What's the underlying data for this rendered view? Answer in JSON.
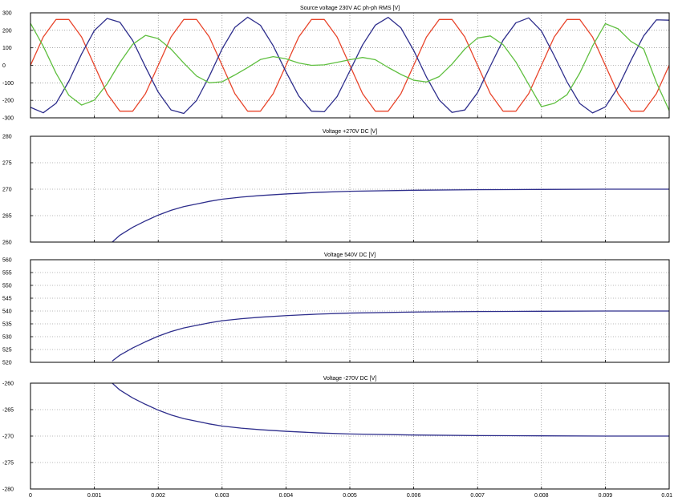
{
  "chart_data": [
    {
      "type": "line",
      "title": "Source voltage 230V AC ph-ph RMS [V]",
      "xlabel": "",
      "ylabel": "",
      "xlim": [
        0,
        0.01
      ],
      "ylim": [
        -300,
        300
      ],
      "yticks": [
        300,
        200,
        100,
        0,
        -100,
        -200,
        -300
      ],
      "ytick_labels": [
        "300",
        "200",
        "100",
        "0",
        "-100",
        "-200",
        "-300"
      ],
      "grid": true,
      "series": [
        {
          "color": "#e8442a",
          "x": [
            0,
            0.0002,
            0.0004,
            0.0006,
            0.0008,
            0.001,
            0.0012,
            0.0014,
            0.0016,
            0.0018,
            0.002,
            0.0022,
            0.0024,
            0.0026,
            0.0028,
            0.003,
            0.0032,
            0.0034,
            0.0036,
            0.0038,
            0.004,
            0.0042,
            0.0044,
            0.0046,
            0.0048,
            0.005,
            0.0052,
            0.0054,
            0.0056,
            0.0058,
            0.006,
            0.0062,
            0.0064,
            0.0066,
            0.0068,
            0.007,
            0.0072,
            0.0074,
            0.0076,
            0.0078,
            0.008,
            0.0082,
            0.0084,
            0.0086,
            0.0088,
            0.009,
            0.0092,
            0.0094,
            0.0096,
            0.0098,
            0.01
          ],
          "y": [
            0,
            162,
            262,
            262,
            162,
            0,
            -162,
            -262,
            -262,
            -162,
            0,
            162,
            262,
            262,
            162,
            0,
            -162,
            -262,
            -262,
            -162,
            0,
            162,
            262,
            262,
            162,
            0,
            -162,
            -262,
            -262,
            -162,
            0,
            162,
            262,
            262,
            162,
            0,
            -162,
            -262,
            -262,
            -162,
            0,
            162,
            262,
            262,
            162,
            0,
            -162,
            -262,
            -262,
            -162,
            0
          ]
        },
        {
          "color": "#2e2e8c",
          "x": [
            0,
            0.0002,
            0.0004,
            0.0006,
            0.0008,
            0.001,
            0.0012,
            0.0014,
            0.0016,
            0.0018,
            0.002,
            0.0022,
            0.0024,
            0.0026,
            0.0028,
            0.003,
            0.0032,
            0.0034,
            0.0036,
            0.0038,
            0.004,
            0.0042,
            0.0044,
            0.0046,
            0.0048,
            0.005,
            0.0052,
            0.0054,
            0.0056,
            0.0058,
            0.006,
            0.0062,
            0.0064,
            0.0066,
            0.0068,
            0.007,
            0.0072,
            0.0074,
            0.0076,
            0.0078,
            0.008,
            0.0082,
            0.0084,
            0.0086,
            0.0088,
            0.009,
            0.0092,
            0.0094,
            0.0096,
            0.0098,
            0.01
          ],
          "y": [
            -240,
            -271,
            -217,
            -91,
            65,
            199,
            268,
            246,
            142,
            -9,
            -153,
            -255,
            -275,
            -201,
            -62,
            94,
            217,
            275,
            229,
            112,
            -37,
            -175,
            -262,
            -265,
            -179,
            -32,
            117,
            230,
            274,
            214,
            85,
            -67,
            -198,
            -269,
            -255,
            -156,
            -4,
            144,
            243,
            271,
            196,
            55,
            -94,
            -218,
            -272,
            -238,
            -125,
            27,
            168,
            260,
            258
          ]
        },
        {
          "color": "#5fbf3f",
          "x": [
            0,
            0.0002,
            0.0004,
            0.0006,
            0.0008,
            0.001,
            0.0012,
            0.0014,
            0.0016,
            0.0018,
            0.002,
            0.0022,
            0.0024,
            0.0026,
            0.0028,
            0.003,
            0.0032,
            0.0034,
            0.0036,
            0.0038,
            0.004,
            0.0042,
            0.0044,
            0.0046,
            0.0048,
            0.005,
            0.0052,
            0.0054,
            0.0056,
            0.0058,
            0.006,
            0.0062,
            0.0064,
            0.0066,
            0.0068,
            0.007,
            0.0072,
            0.0074,
            0.0076,
            0.0078,
            0.008,
            0.0082,
            0.0084,
            0.0086,
            0.0088,
            0.009,
            0.0092,
            0.0094,
            0.0096,
            0.0098,
            0.01
          ],
          "y": [
            240,
            109,
            -45,
            -171,
            -227,
            -199,
            -106,
            16,
            120,
            171,
            153,
            93,
            13,
            -61,
            -100,
            -94,
            -55,
            -13,
            33,
            50,
            37,
            13,
            0,
            3,
            17,
            32,
            45,
            32,
            -12,
            -52,
            -85,
            -95,
            -64,
            7,
            93,
            156,
            168,
            118,
            19,
            -109,
            -236,
            -217,
            -168,
            -44,
            110,
            238,
            209,
            137,
            94,
            -98,
            -258
          ]
        }
      ]
    },
    {
      "type": "line",
      "title": "Voltage +270V DC [V]",
      "xlabel": "",
      "ylabel": "",
      "xlim": [
        0,
        0.01
      ],
      "ylim": [
        260,
        280
      ],
      "yticks": [
        280,
        275,
        270,
        265,
        260
      ],
      "ytick_labels": [
        "280",
        "275",
        "270",
        "265",
        "260"
      ],
      "grid": true,
      "series": [
        {
          "color": "#2e2e8c",
          "x": [
            0.00128,
            0.0014,
            0.0016,
            0.0018,
            0.002,
            0.0022,
            0.0024,
            0.0026,
            0.0028,
            0.003,
            0.0033,
            0.0036,
            0.004,
            0.0045,
            0.005,
            0.006,
            0.007,
            0.008,
            0.009,
            0.01
          ],
          "y": [
            260,
            261.3,
            262.8,
            264.0,
            265.1,
            266.0,
            266.7,
            267.2,
            267.7,
            268.1,
            268.5,
            268.8,
            269.1,
            269.4,
            269.6,
            269.8,
            269.9,
            269.95,
            270.0,
            270.0
          ]
        }
      ]
    },
    {
      "type": "line",
      "title": "Voltage 540V DC [V]",
      "xlabel": "",
      "ylabel": "",
      "xlim": [
        0,
        0.01
      ],
      "ylim": [
        520,
        560
      ],
      "yticks": [
        560,
        555,
        550,
        545,
        540,
        535,
        530,
        525,
        520
      ],
      "ytick_labels": [
        "560",
        "555",
        "550",
        "545",
        "540",
        "535",
        "530",
        "525",
        "520"
      ],
      "grid": true,
      "series": [
        {
          "color": "#2e2e8c",
          "x": [
            0.00128,
            0.0014,
            0.0016,
            0.0018,
            0.002,
            0.0022,
            0.0024,
            0.0026,
            0.0028,
            0.003,
            0.0033,
            0.0036,
            0.004,
            0.0045,
            0.005,
            0.006,
            0.007,
            0.008,
            0.009,
            0.01
          ],
          "y": [
            520.5,
            522.8,
            525.6,
            528.0,
            530.2,
            532.0,
            533.4,
            534.4,
            535.4,
            536.2,
            537.0,
            537.6,
            538.2,
            538.8,
            539.2,
            539.6,
            539.8,
            539.9,
            540.0,
            540.0
          ]
        }
      ]
    },
    {
      "type": "line",
      "title": "Voltage -270V DC [V]",
      "xlabel": "",
      "ylabel": "",
      "xlim": [
        0,
        0.01
      ],
      "ylim": [
        -280,
        -260
      ],
      "yticks": [
        -260,
        -265,
        -270,
        -275,
        -280
      ],
      "ytick_labels": [
        "-260",
        "-265",
        "-270",
        "-275",
        "-280"
      ],
      "xticks": [
        0,
        0.001,
        0.002,
        0.003,
        0.004,
        0.005,
        0.006,
        0.007,
        0.008,
        0.009,
        0.01
      ],
      "xtick_labels": [
        "0",
        "0.001",
        "0.002",
        "0.003",
        "0.004",
        "0.005",
        "0.006",
        "0.007",
        "0.008",
        "0.009",
        "0.01"
      ],
      "grid": true,
      "series": [
        {
          "color": "#2e2e8c",
          "x": [
            0.00128,
            0.0014,
            0.0016,
            0.0018,
            0.002,
            0.0022,
            0.0024,
            0.0026,
            0.0028,
            0.003,
            0.0033,
            0.0036,
            0.004,
            0.0045,
            0.005,
            0.006,
            0.007,
            0.008,
            0.009,
            0.01
          ],
          "y": [
            -260,
            -261.3,
            -262.8,
            -264.0,
            -265.1,
            -266.0,
            -266.7,
            -267.2,
            -267.7,
            -268.1,
            -268.5,
            -268.8,
            -269.1,
            -269.4,
            -269.6,
            -269.8,
            -269.9,
            -269.95,
            -270.0,
            -270.0
          ]
        }
      ]
    }
  ]
}
